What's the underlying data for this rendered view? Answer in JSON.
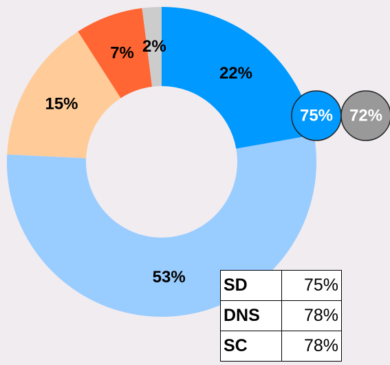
{
  "chart_data": {
    "type": "donut",
    "categories": [
      "Blue",
      "Light blue",
      "Peach",
      "Orange",
      "Gray"
    ],
    "values": [
      22,
      53,
      15,
      7,
      2
    ],
    "value_labels": [
      "22%",
      "53%",
      "15%",
      "7%",
      "2%"
    ],
    "colors": [
      "#0099ff",
      "#99ccff",
      "#ffcc99",
      "#ff6633",
      "#cccccc"
    ],
    "badges": {
      "values": [
        75,
        72
      ],
      "value_labels": [
        "75%",
        "72%"
      ],
      "colors": [
        "#0099ff",
        "#999999"
      ]
    }
  },
  "table": {
    "rows": [
      [
        "SD",
        "75%"
      ],
      [
        "DNS",
        "78%"
      ],
      [
        "SC",
        "78%"
      ]
    ]
  }
}
